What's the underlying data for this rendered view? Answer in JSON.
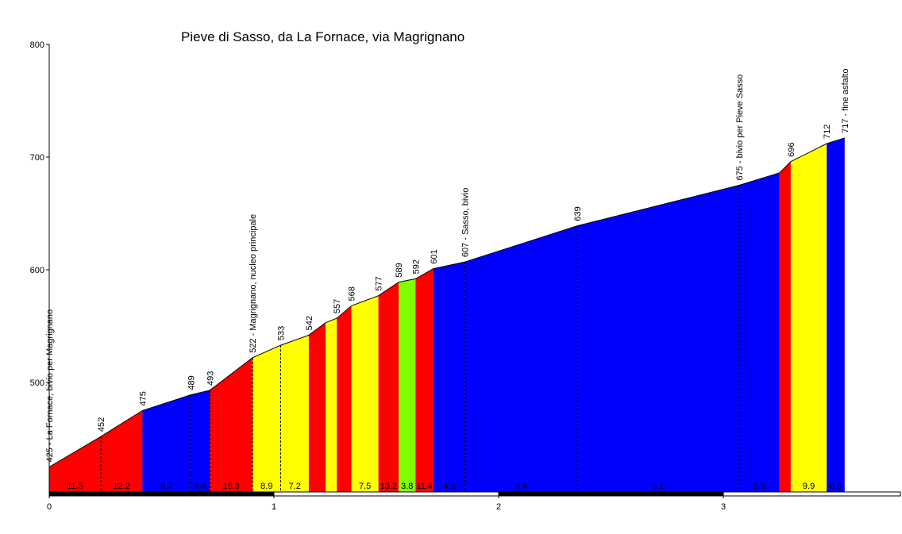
{
  "chart_data": {
    "type": "area",
    "title": "Pieve di Sasso, da La Fornace, via Magrignano",
    "xlabel": "",
    "ylabel": "",
    "xlim": [
      0,
      3.8
    ],
    "ylim": [
      400,
      800
    ],
    "y_ticks": [
      500,
      600,
      700,
      800
    ],
    "x_ticks": [
      0,
      1,
      2,
      3
    ],
    "grid": false,
    "profile": [
      {
        "x": 0.0,
        "y": 425
      },
      {
        "x": 0.23,
        "y": 452
      },
      {
        "x": 0.415,
        "y": 475
      },
      {
        "x": 0.63,
        "y": 489
      },
      {
        "x": 0.715,
        "y": 493
      },
      {
        "x": 0.905,
        "y": 522
      },
      {
        "x": 1.03,
        "y": 533
      },
      {
        "x": 1.155,
        "y": 542
      },
      {
        "x": 1.23,
        "y": 553
      },
      {
        "x": 1.28,
        "y": 557
      },
      {
        "x": 1.345,
        "y": 568
      },
      {
        "x": 1.465,
        "y": 577
      },
      {
        "x": 1.555,
        "y": 589
      },
      {
        "x": 1.63,
        "y": 592
      },
      {
        "x": 1.71,
        "y": 601
      },
      {
        "x": 1.85,
        "y": 607
      },
      {
        "x": 2.35,
        "y": 639
      },
      {
        "x": 3.07,
        "y": 675
      },
      {
        "x": 3.25,
        "y": 686
      },
      {
        "x": 3.3,
        "y": 696
      },
      {
        "x": 3.46,
        "y": 712
      },
      {
        "x": 3.54,
        "y": 717
      }
    ],
    "segments": [
      {
        "x0": 0.0,
        "x1": 0.23,
        "color": "#ff0000",
        "label": "11.5"
      },
      {
        "x0": 0.23,
        "x1": 0.415,
        "color": "#ff0000",
        "label": "12.2"
      },
      {
        "x0": 0.415,
        "x1": 0.63,
        "color": "#0000ff",
        "label": "6.7"
      },
      {
        "x0": 0.63,
        "x1": 0.715,
        "color": "#0000ff",
        "label": "4.4"
      },
      {
        "x0": 0.715,
        "x1": 0.905,
        "color": "#ff0000",
        "label": "15.3"
      },
      {
        "x0": 0.905,
        "x1": 1.03,
        "color": "#ffff00",
        "label": "8.9"
      },
      {
        "x0": 1.03,
        "x1": 1.155,
        "color": "#ffff00",
        "label": "7.2"
      },
      {
        "x0": 1.155,
        "x1": 1.23,
        "color": "#ff0000",
        "label": ""
      },
      {
        "x0": 1.23,
        "x1": 1.28,
        "color": "#ffff00",
        "label": ""
      },
      {
        "x0": 1.28,
        "x1": 1.345,
        "color": "#ff0000",
        "label": ""
      },
      {
        "x0": 1.345,
        "x1": 1.465,
        "color": "#ffff00",
        "label": "7.5"
      },
      {
        "x0": 1.465,
        "x1": 1.555,
        "color": "#ff0000",
        "label": "13.2"
      },
      {
        "x0": 1.555,
        "x1": 1.63,
        "color": "#80ff00",
        "label": "3.8"
      },
      {
        "x0": 1.63,
        "x1": 1.71,
        "color": "#ff0000",
        "label": "11.4"
      },
      {
        "x0": 1.71,
        "x1": 1.85,
        "color": "#0000ff",
        "label": "4.3"
      },
      {
        "x0": 1.85,
        "x1": 2.35,
        "color": "#0000ff",
        "label": "6.4"
      },
      {
        "x0": 2.35,
        "x1": 3.07,
        "color": "#0000ff",
        "label": "5.1"
      },
      {
        "x0": 3.07,
        "x1": 3.25,
        "color": "#0000ff",
        "label": "5.5"
      },
      {
        "x0": 3.25,
        "x1": 3.3,
        "color": "#ff0000",
        "label": ""
      },
      {
        "x0": 3.3,
        "x1": 3.46,
        "color": "#ffff00",
        "label": "9.9"
      },
      {
        "x0": 3.46,
        "x1": 3.54,
        "color": "#0000ff",
        "label": "6.6"
      }
    ],
    "point_labels": [
      {
        "x": 0.0,
        "y": 425,
        "text": "425 - La Fornace, bivio per Magrignano",
        "dashed": false
      },
      {
        "x": 0.23,
        "y": 452,
        "text": "452",
        "dashed": true
      },
      {
        "x": 0.415,
        "y": 475,
        "text": "475",
        "dashed": false
      },
      {
        "x": 0.63,
        "y": 489,
        "text": "489",
        "dashed": true
      },
      {
        "x": 0.715,
        "y": 493,
        "text": "493",
        "dashed": true
      },
      {
        "x": 0.905,
        "y": 522,
        "text": "522 - Magrignano, nucleo principale",
        "dashed": true
      },
      {
        "x": 1.03,
        "y": 533,
        "text": "533",
        "dashed": true
      },
      {
        "x": 1.155,
        "y": 542,
        "text": "542",
        "dashed": false
      },
      {
        "x": 1.28,
        "y": 557,
        "text": "557",
        "dashed": false
      },
      {
        "x": 1.345,
        "y": 568,
        "text": "568",
        "dashed": false
      },
      {
        "x": 1.465,
        "y": 577,
        "text": "577",
        "dashed": false
      },
      {
        "x": 1.555,
        "y": 589,
        "text": "589",
        "dashed": false
      },
      {
        "x": 1.63,
        "y": 592,
        "text": "592",
        "dashed": false
      },
      {
        "x": 1.71,
        "y": 601,
        "text": "601",
        "dashed": false
      },
      {
        "x": 1.85,
        "y": 607,
        "text": "607 - Sasso, bivio",
        "dashed": true
      },
      {
        "x": 2.35,
        "y": 639,
        "text": "639",
        "dashed": true
      },
      {
        "x": 3.07,
        "y": 675,
        "text": "675 - bivio per Pieve Sasso",
        "dashed": true
      },
      {
        "x": 3.3,
        "y": 696,
        "text": "696",
        "dashed": false
      },
      {
        "x": 3.46,
        "y": 712,
        "text": "712",
        "dashed": false
      },
      {
        "x": 3.54,
        "y": 717,
        "text": "717 - fine asfalto",
        "dashed": false
      }
    ]
  }
}
